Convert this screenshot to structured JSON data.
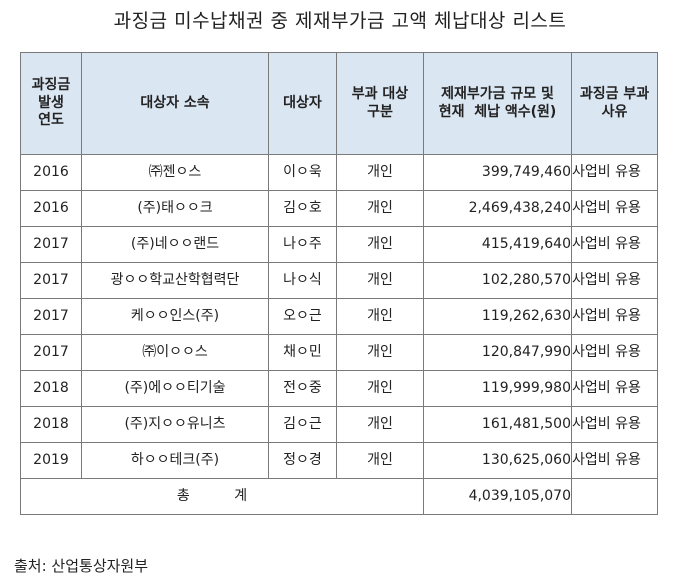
{
  "title": "과징금 미수납채권 중 제재부가금 고액 체납대상 리스트",
  "header": {
    "year": "과징금\n발생\n연도",
    "affiliation": "대상자 소속",
    "person": "대상자",
    "type": "부과 대상\n구분",
    "amount": "제재부가금 규모 및\n현재  체납 액수(원)",
    "reason": "과징금 부과\n사유"
  },
  "rows": [
    {
      "year": "2016",
      "affiliation": "㈜젠ㅇ스",
      "person": "이ㅇ욱",
      "type": "개인",
      "amount": "399,749,460",
      "reason": "사업비 유용"
    },
    {
      "year": "2016",
      "affiliation": "(주)태ㅇㅇ크",
      "person": "김ㅇ호",
      "type": "개인",
      "amount": "2,469,438,240",
      "reason": "사업비 유용"
    },
    {
      "year": "2017",
      "affiliation": "(주)네ㅇㅇ랜드",
      "person": "나ㅇ주",
      "type": "개인",
      "amount": "415,419,640",
      "reason": "사업비 유용"
    },
    {
      "year": "2017",
      "affiliation": "광ㅇㅇ학교산학협력단",
      "person": "나ㅇ식",
      "type": "개인",
      "amount": "102,280,570",
      "reason": "사업비 유용"
    },
    {
      "year": "2017",
      "affiliation": "케ㅇㅇ인스(주)",
      "person": "오ㅇ근",
      "type": "개인",
      "amount": "119,262,630",
      "reason": "사업비 유용"
    },
    {
      "year": "2017",
      "affiliation": "㈜이ㅇㅇ스",
      "person": "채ㅇ민",
      "type": "개인",
      "amount": "120,847,990",
      "reason": "사업비 유용"
    },
    {
      "year": "2018",
      "affiliation": "(주)에ㅇㅇ티기술",
      "person": "전ㅇ중",
      "type": "개인",
      "amount": "119,999,980",
      "reason": "사업비 유용"
    },
    {
      "year": "2018",
      "affiliation": "(주)지ㅇㅇ유니츠",
      "person": "김ㅇ근",
      "type": "개인",
      "amount": "161,481,500",
      "reason": "사업비 유용"
    },
    {
      "year": "2019",
      "affiliation": "하ㅇㅇ테크(주)",
      "person": "정ㅇ경",
      "type": "개인",
      "amount": "130,625,060",
      "reason": "사업비 유용"
    }
  ],
  "total": {
    "label": "총 계",
    "amount": "4,039,105,070"
  },
  "source": "출처: 산업통상자원부"
}
